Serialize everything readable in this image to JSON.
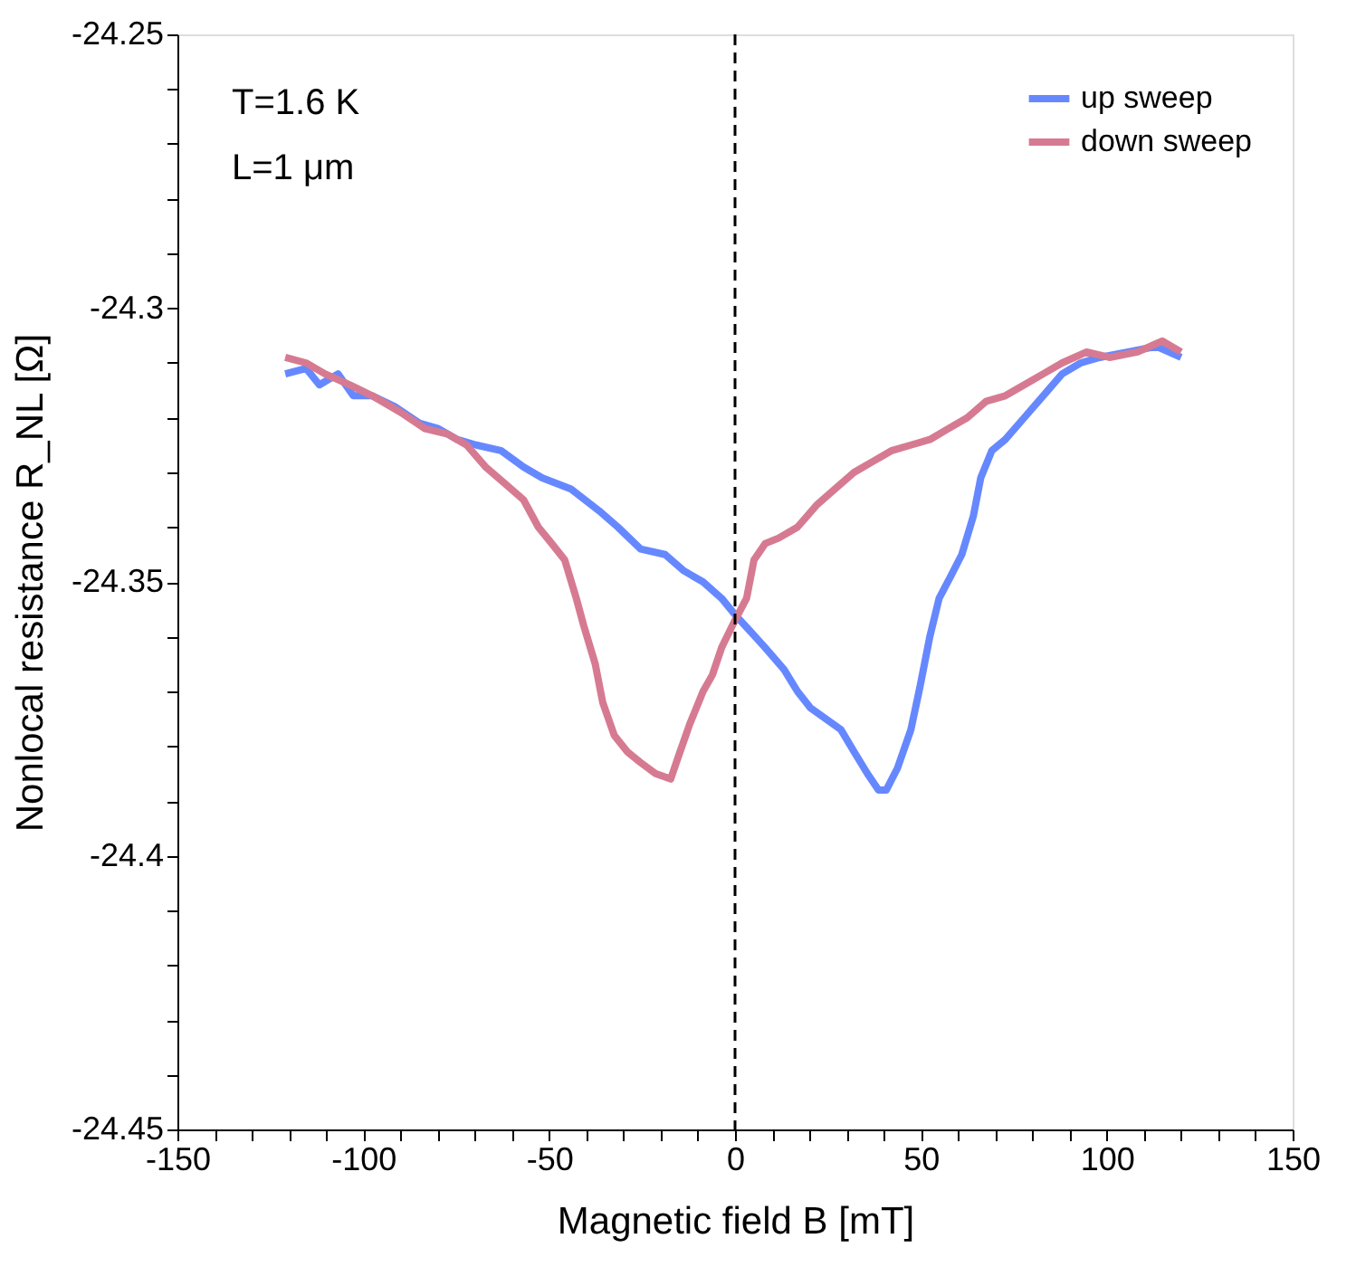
{
  "chart_data": {
    "type": "line",
    "xlabel": "Magnetic field B [mT]",
    "ylabel": "Nonlocal resistance R_NL [Ω]",
    "xlim": [
      -150,
      150
    ],
    "ylim": [
      -24.45,
      -24.25
    ],
    "xticks": [
      -150,
      {
        "value": -140,
        "label": null
      },
      {
        "value": -130,
        "label": null
      },
      {
        "value": -120,
        "label": null
      },
      {
        "value": -110,
        "label": null
      },
      -100,
      {
        "value": -90,
        "label": null
      },
      {
        "value": -80,
        "label": null
      },
      {
        "value": -70,
        "label": null
      },
      {
        "value": -60,
        "label": null
      },
      -50,
      {
        "value": -40,
        "label": null
      },
      {
        "value": -30,
        "label": null
      },
      {
        "value": -20,
        "label": null
      },
      {
        "value": -10,
        "label": null
      },
      0,
      {
        "value": 10,
        "label": null
      },
      {
        "value": 20,
        "label": null
      },
      {
        "value": 30,
        "label": null
      },
      {
        "value": 40,
        "label": null
      },
      50,
      {
        "value": 60,
        "label": null
      },
      {
        "value": 70,
        "label": null
      },
      {
        "value": 80,
        "label": null
      },
      {
        "value": 90,
        "label": null
      },
      100,
      {
        "value": 110,
        "label": null
      },
      {
        "value": 120,
        "label": null
      },
      {
        "value": 130,
        "label": null
      },
      {
        "value": 140,
        "label": null
      },
      150
    ],
    "yticks": [
      {
        "value": -24.45,
        "label": "-24.45"
      },
      {
        "value": -24.44,
        "label": null
      },
      {
        "value": -24.43,
        "label": null
      },
      {
        "value": -24.42,
        "label": null
      },
      {
        "value": -24.41,
        "label": null
      },
      {
        "value": -24.4,
        "label": "-24.4"
      },
      {
        "value": -24.39,
        "label": null
      },
      {
        "value": -24.38,
        "label": null
      },
      {
        "value": -24.37,
        "label": null
      },
      {
        "value": -24.36,
        "label": null
      },
      {
        "value": -24.35,
        "label": "-24.35"
      },
      {
        "value": -24.34,
        "label": null
      },
      {
        "value": -24.33,
        "label": null
      },
      {
        "value": -24.32,
        "label": null
      },
      {
        "value": -24.31,
        "label": null
      },
      {
        "value": -24.3,
        "label": "-24.3"
      },
      {
        "value": -24.29,
        "label": null
      },
      {
        "value": -24.28,
        "label": null
      },
      {
        "value": -24.27,
        "label": null
      },
      {
        "value": -24.26,
        "label": null
      },
      {
        "value": -24.25,
        "label": "-24.25"
      }
    ],
    "grid": false,
    "legend": "top right",
    "marker": "none",
    "line_style": "solid",
    "ref_lines": [
      {
        "axis": "x",
        "value": 0,
        "color": "#000000",
        "line_style": "dashed"
      }
    ],
    "annotations": [
      "T=1.6 K",
      "L=1 μm"
    ],
    "series": [
      {
        "name": "up sweep",
        "color": "#6688ff",
        "x": [
          -121.0,
          -115.4,
          -111.8,
          -106.8,
          -102.7,
          -97.6,
          -91.5,
          -84.9,
          -79.8,
          -74.7,
          -69.6,
          -63.0,
          -56.9,
          -51.9,
          -44.2,
          -36.6,
          -31.5,
          -25.4,
          -18.8,
          -13.7,
          -8.6,
          -3.6,
          0,
          4.1,
          8.1,
          13.2,
          16.8,
          20.3,
          24.4,
          28.5,
          32.0,
          35.6,
          38.6,
          40.7,
          43.7,
          47.3,
          49.8,
          52.4,
          54.9,
          58.0,
          61.0,
          64.1,
          66.1,
          69.1,
          72.7,
          77.8,
          82.9,
          88.0,
          93.0,
          98.1,
          105.7,
          113.4,
          120.0
        ],
        "values": [
          -24.312,
          -24.311,
          -24.314,
          -24.312,
          -24.316,
          -24.316,
          -24.318,
          -24.321,
          -24.322,
          -24.324,
          -24.325,
          -24.326,
          -24.329,
          -24.331,
          -24.333,
          -24.337,
          -24.34,
          -24.344,
          -24.345,
          -24.348,
          -24.35,
          -24.353,
          -24.356,
          -24.359,
          -24.362,
          -24.366,
          -24.37,
          -24.373,
          -24.375,
          -24.377,
          -24.381,
          -24.385,
          -24.388,
          -24.388,
          -24.384,
          -24.377,
          -24.369,
          -24.36,
          -24.353,
          -24.349,
          -24.345,
          -24.338,
          -24.331,
          -24.326,
          -24.324,
          -24.32,
          -24.316,
          -24.312,
          -24.31,
          -24.309,
          -24.308,
          -24.307,
          -24.309
        ]
      },
      {
        "name": "down sweep",
        "color": "#d67a92",
        "x": [
          -121.0,
          -115.4,
          -110.3,
          -103.7,
          -97.6,
          -90.0,
          -83.4,
          -77.3,
          -72.2,
          -67.1,
          -62.0,
          -56.9,
          -52.9,
          -49.3,
          -45.8,
          -42.7,
          -40.7,
          -37.6,
          -35.6,
          -32.5,
          -29.0,
          -25.4,
          -21.4,
          -17.3,
          -15.3,
          -12.2,
          -8.6,
          -6.1,
          -3.6,
          0,
          3.1,
          5.1,
          8.1,
          11.7,
          16.8,
          21.9,
          26.9,
          32.0,
          37.1,
          42.2,
          47.3,
          52.4,
          57.4,
          62.5,
          67.6,
          72.7,
          77.8,
          82.9,
          88.0,
          94.6,
          100.7,
          108.3,
          114.9,
          120.0
        ],
        "values": [
          -24.309,
          -24.31,
          -24.312,
          -24.314,
          -24.316,
          -24.319,
          -24.322,
          -24.323,
          -24.325,
          -24.329,
          -24.332,
          -24.335,
          -24.34,
          -24.343,
          -24.346,
          -24.353,
          -24.358,
          -24.365,
          -24.372,
          -24.378,
          -24.381,
          -24.383,
          -24.385,
          -24.386,
          -24.382,
          -24.376,
          -24.37,
          -24.367,
          -24.362,
          -24.357,
          -24.353,
          -24.346,
          -24.343,
          -24.342,
          -24.34,
          -24.336,
          -24.333,
          -24.33,
          -24.328,
          -24.326,
          -24.325,
          -24.324,
          -24.322,
          -24.32,
          -24.317,
          -24.316,
          -24.314,
          -24.312,
          -24.31,
          -24.308,
          -24.309,
          -24.308,
          -24.306,
          -24.308
        ]
      }
    ]
  }
}
